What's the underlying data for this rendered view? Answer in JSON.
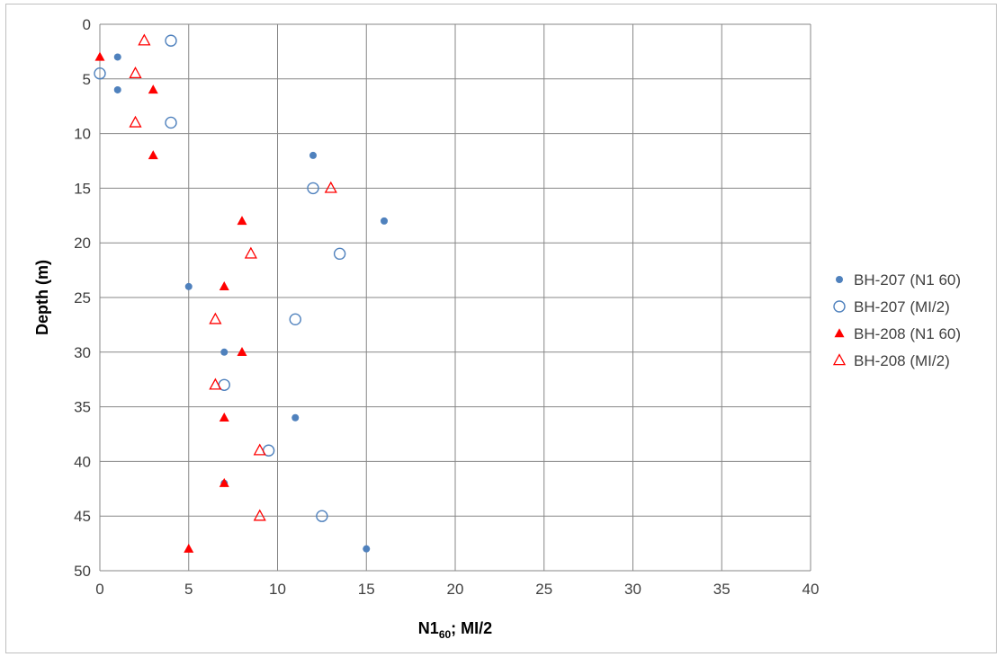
{
  "chart_data": {
    "type": "scatter",
    "title": "",
    "xlabel": "N1",
    "xlabel_sub": "60",
    "xlabel_suffix": "; MI/2",
    "ylabel": "Depth (m)",
    "xlim": [
      0,
      40
    ],
    "ylim": [
      0,
      50
    ],
    "y_inverted": true,
    "x_ticks": [
      0,
      5,
      10,
      15,
      20,
      25,
      30,
      35,
      40
    ],
    "y_ticks": [
      0,
      5,
      10,
      15,
      20,
      25,
      30,
      35,
      40,
      45,
      50
    ],
    "grid": true,
    "legend_position": "right",
    "series": [
      {
        "name": "BH-207 (N1 60)",
        "marker": "filled-circle",
        "color": "#4f81bd",
        "points": [
          [
            1,
            3
          ],
          [
            1,
            6
          ],
          [
            12,
            12
          ],
          [
            16,
            18
          ],
          [
            5,
            24
          ],
          [
            7,
            30
          ],
          [
            11,
            36
          ],
          [
            7,
            42
          ],
          [
            15,
            48
          ]
        ]
      },
      {
        "name": "BH-207 (MI/2)",
        "marker": "open-circle",
        "color": "#4f81bd",
        "points": [
          [
            4,
            1.5
          ],
          [
            0,
            4.5
          ],
          [
            4,
            9
          ],
          [
            12,
            15
          ],
          [
            13.5,
            21
          ],
          [
            11,
            27
          ],
          [
            7,
            33
          ],
          [
            9.5,
            39
          ],
          [
            12.5,
            45
          ]
        ]
      },
      {
        "name": "BH-208 (N1 60)",
        "marker": "filled-triangle",
        "color": "#ff0000",
        "points": [
          [
            0,
            3
          ],
          [
            3,
            6
          ],
          [
            3,
            12
          ],
          [
            8,
            18
          ],
          [
            7,
            24
          ],
          [
            8,
            30
          ],
          [
            7,
            36
          ],
          [
            7,
            42
          ],
          [
            5,
            48
          ]
        ]
      },
      {
        "name": "BH-208 (MI/2)",
        "marker": "open-triangle",
        "color": "#ff0000",
        "points": [
          [
            2.5,
            1.5
          ],
          [
            2,
            4.5
          ],
          [
            2,
            9
          ],
          [
            13,
            15
          ],
          [
            8.5,
            21
          ],
          [
            6.5,
            27
          ],
          [
            6.5,
            33
          ],
          [
            9,
            39
          ],
          [
            9,
            45
          ]
        ]
      }
    ]
  }
}
